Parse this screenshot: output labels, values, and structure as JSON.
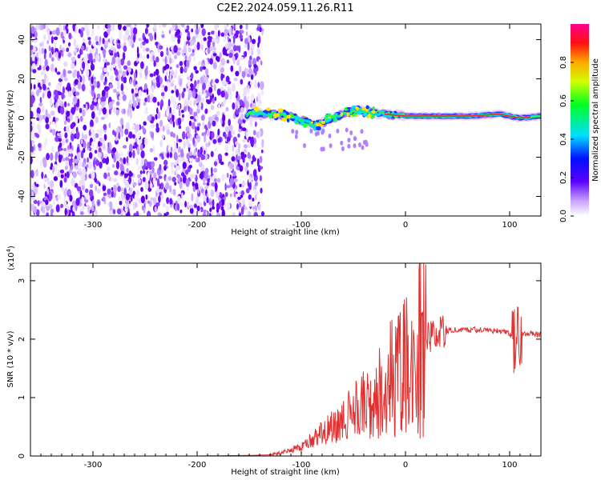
{
  "figure_title": "C2E2.2024.059.11.26.R11",
  "chart_data": [
    {
      "type": "heatmap",
      "xlabel": "Height of straight line (km)",
      "ylabel": "Frequency (Hz)",
      "xlim": [
        -360,
        130
      ],
      "ylim": [
        -50,
        48
      ],
      "xticks": [
        -300,
        -200,
        -100,
        0,
        100
      ],
      "yticks": [
        -40,
        -20,
        0,
        20,
        40
      ],
      "noise_region_x": [
        -360,
        -137
      ],
      "signal_track": [
        {
          "x": -150,
          "y": 3
        },
        {
          "x": -130,
          "y": 2
        },
        {
          "x": -110,
          "y": 1
        },
        {
          "x": -95,
          "y": -2
        },
        {
          "x": -85,
          "y": -4
        },
        {
          "x": -75,
          "y": -1
        },
        {
          "x": -60,
          "y": 2
        },
        {
          "x": -45,
          "y": 4
        },
        {
          "x": -35,
          "y": 3
        },
        {
          "x": -20,
          "y": 2
        },
        {
          "x": 0,
          "y": 1
        },
        {
          "x": 30,
          "y": 1
        },
        {
          "x": 60,
          "y": 1
        },
        {
          "x": 90,
          "y": 2
        },
        {
          "x": 110,
          "y": 0
        },
        {
          "x": 130,
          "y": 1
        }
      ],
      "colorbar": {
        "label": "Normalized spectral amplitude",
        "range": [
          0,
          1
        ],
        "ticks": [
          "0.0",
          "0.2",
          "0.4",
          "0.6",
          "0.8"
        ]
      }
    },
    {
      "type": "line",
      "xlabel": "Height of straight line (km)",
      "ylabel": "SNR (10 * v/v)",
      "yscale_label": "(x10",
      "yscale_exp": "4",
      "xlim": [
        -360,
        130
      ],
      "ylim": [
        0,
        3.3
      ],
      "xticks": [
        -300,
        -200,
        -100,
        0,
        100
      ],
      "yticks": [
        0,
        1,
        2,
        3
      ],
      "line_color": "#e03030",
      "series": [
        {
          "x": [
            -360,
            -300,
            -250,
            -200,
            -150,
            -130,
            -120,
            -110,
            -100,
            -90,
            -80,
            -70,
            -60,
            -50,
            -40,
            -30,
            -20,
            -10,
            0,
            10,
            20,
            30,
            40,
            50,
            60,
            70,
            80,
            90,
            100,
            105,
            108,
            110,
            115,
            120,
            130
          ],
          "y": [
            0.0,
            0.0,
            0.0,
            0.0,
            0.01,
            0.02,
            0.05,
            0.1,
            0.15,
            0.3,
            0.4,
            0.5,
            0.6,
            0.8,
            0.9,
            1.0,
            1.2,
            1.4,
            1.6,
            1.8,
            2.0,
            2.1,
            2.15,
            2.16,
            2.16,
            2.16,
            2.15,
            2.15,
            2.1,
            1.9,
            2.2,
            2.1,
            2.1,
            2.09,
            2.07
          ]
        }
      ]
    }
  ]
}
